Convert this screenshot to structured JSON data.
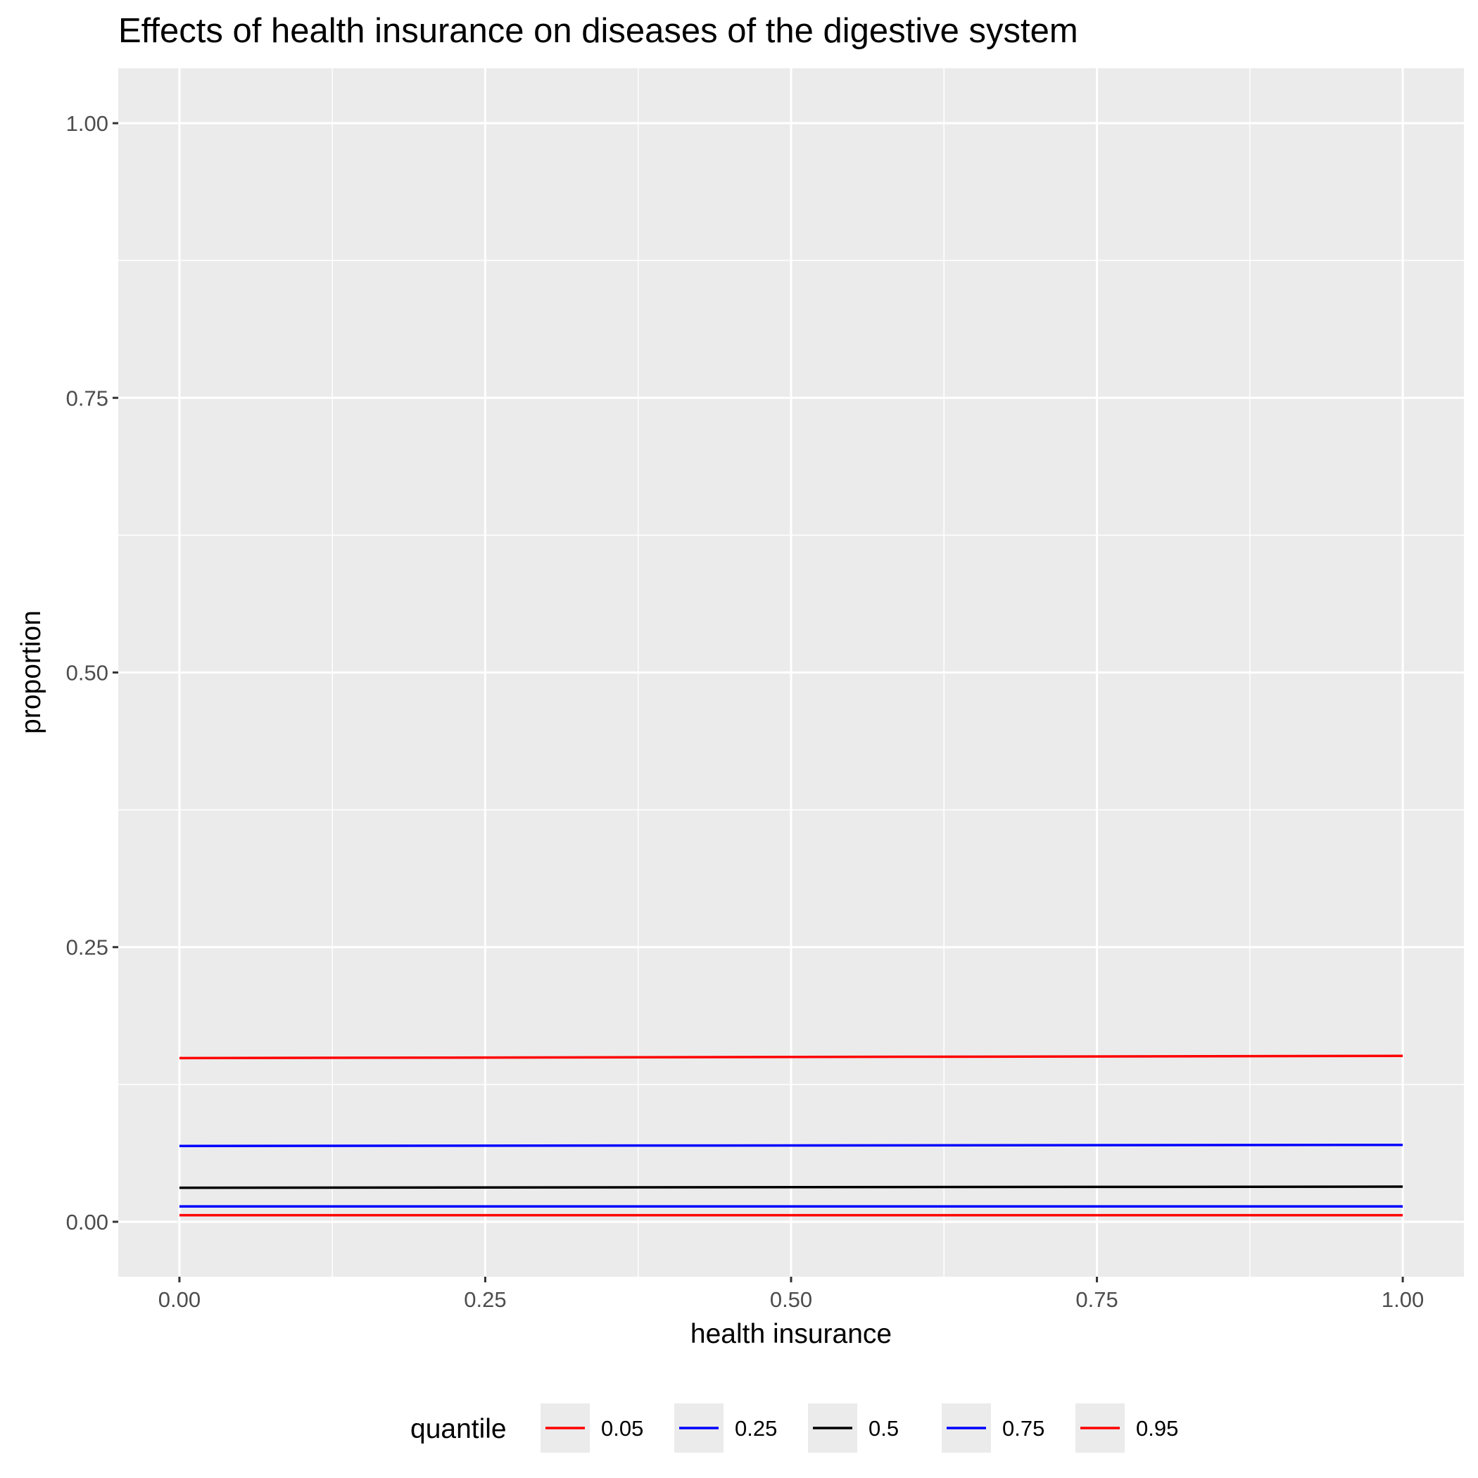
{
  "chart_data": {
    "type": "line",
    "title": "Effects of health insurance on diseases of the digestive system",
    "xlabel": "health insurance",
    "ylabel": "proportion",
    "xlim": [
      -0.05,
      1.05
    ],
    "ylim": [
      -0.05,
      1.05
    ],
    "x_ticks": [
      "0.00",
      "0.25",
      "0.50",
      "0.75",
      "1.00"
    ],
    "y_ticks": [
      "0.00",
      "0.25",
      "0.50",
      "0.75",
      "1.00"
    ],
    "grid": true,
    "legend": {
      "title": "quantile",
      "position": "bottom"
    },
    "x": [
      0,
      1
    ],
    "series": [
      {
        "name": "0.05",
        "color": "#ff0000",
        "values": [
          0.006,
          0.006
        ]
      },
      {
        "name": "0.25",
        "color": "#0000ff",
        "values": [
          0.014,
          0.014
        ]
      },
      {
        "name": "0.5",
        "color": "#000000",
        "values": [
          0.031,
          0.032
        ]
      },
      {
        "name": "0.75",
        "color": "#0000ff",
        "values": [
          0.069,
          0.07
        ]
      },
      {
        "name": "0.95",
        "color": "#ff0000",
        "values": [
          0.149,
          0.151
        ]
      }
    ]
  }
}
